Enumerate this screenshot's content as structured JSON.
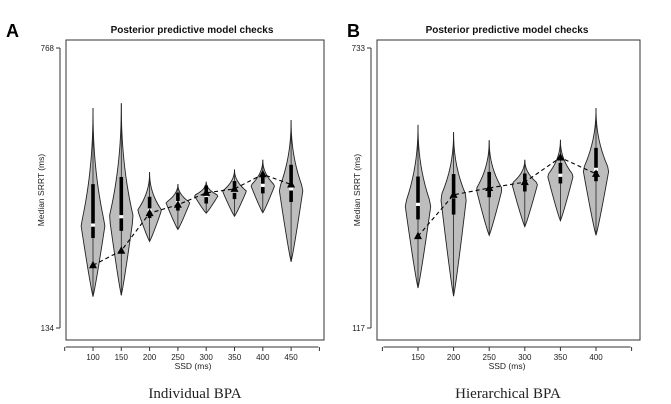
{
  "chart_data": [
    {
      "type": "violin",
      "panel_label": "A",
      "title": "Posterior predictive model checks",
      "xlabel": "SSD (ms)",
      "ylabel": "Median SRRT (ms)",
      "caption": "Individual BPA",
      "ylim": [
        134,
        768
      ],
      "y_tick_labels": [
        "134",
        "768"
      ],
      "categories": [
        "100",
        "150",
        "200",
        "250",
        "300",
        "350",
        "400",
        "450"
      ],
      "violins": [
        {
          "min": 205,
          "max": 632,
          "median": 367
        },
        {
          "min": 208,
          "max": 643,
          "median": 386
        },
        {
          "min": 330,
          "max": 487,
          "median": 401
        },
        {
          "min": 357,
          "max": 460,
          "median": 418
        },
        {
          "min": 394,
          "max": 465,
          "median": 434
        },
        {
          "min": 387,
          "max": 493,
          "median": 444
        },
        {
          "min": 395,
          "max": 515,
          "median": 457
        },
        {
          "min": 284,
          "max": 605,
          "median": 449
        }
      ],
      "observed": [
        276,
        309,
        394,
        413,
        440,
        449,
        482,
        459
      ]
    },
    {
      "type": "violin",
      "panel_label": "B",
      "title": "Posterior predictive model checks",
      "xlabel": "SSD (ms)",
      "ylabel": "Median SRRT (ms)",
      "caption": "Hierarchical BPA",
      "ylim": [
        117,
        733
      ],
      "y_tick_labels": [
        "117",
        "733"
      ],
      "categories": [
        "150",
        "200",
        "250",
        "300",
        "350",
        "400"
      ],
      "violins": [
        {
          "min": 205,
          "max": 564,
          "median": 389
        },
        {
          "min": 187,
          "max": 548,
          "median": 406
        },
        {
          "min": 321,
          "max": 530,
          "median": 423
        },
        {
          "min": 340,
          "max": 487,
          "median": 435
        },
        {
          "min": 353,
          "max": 531,
          "median": 453
        },
        {
          "min": 321,
          "max": 601,
          "median": 466
        }
      ],
      "observed": [
        319,
        410,
        425,
        438,
        492,
        456
      ]
    }
  ]
}
